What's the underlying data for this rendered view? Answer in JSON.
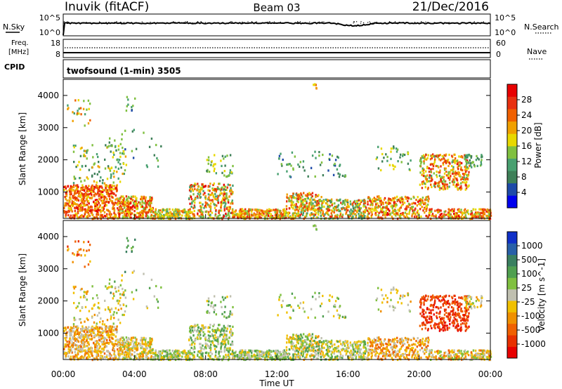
{
  "header": {
    "station": "Inuvik (fitACF)",
    "beam": "Beam 03",
    "date": "21/Dec/2016"
  },
  "noise_panel": {
    "left_label": "N.Sky",
    "right_label": "N.Search",
    "left_ticks": [
      "10^5",
      "10^0"
    ],
    "right_ticks": [
      "10^5",
      "10^0"
    ]
  },
  "freq_panel": {
    "label_line1": "Freq.",
    "label_line2": "[MHz]",
    "left_ticks": [
      "18",
      "8"
    ],
    "right_label": "Nave",
    "right_ticks": [
      "60",
      "0"
    ]
  },
  "cpid": {
    "label": "CPID",
    "program": "twofsound (1-min) 3505"
  },
  "axes": {
    "ylabel": "Slant Range [km]",
    "xlabel": "Time UT",
    "y_ticks": [
      "1000",
      "2000",
      "3000",
      "4000"
    ],
    "x_ticks": [
      "00:00",
      "04:00",
      "08:00",
      "12:00",
      "16:00",
      "20:00",
      "00:00"
    ]
  },
  "chart_data": [
    {
      "type": "heatmap",
      "name": "power",
      "colorbar_label": "Power [dB]",
      "colorbar_ticks": [
        "28",
        "24",
        "20",
        "16",
        "12",
        "8",
        "4"
      ],
      "colors": [
        "#0000ee",
        "#1e4aa8",
        "#3e8058",
        "#48a070",
        "#80c040",
        "#e8d800",
        "#f0a000",
        "#f06000",
        "#e83010",
        "#e80000"
      ],
      "x_range_hours": [
        0,
        24
      ],
      "y_range_km": [
        180,
        4500
      ]
    },
    {
      "type": "heatmap",
      "name": "velocity",
      "colorbar_label": "Velocity [m s^-1]",
      "colorbar_ticks": [
        "1000",
        "500",
        "100",
        "25",
        "-25",
        "-100",
        "-500",
        "-1000"
      ],
      "colors": [
        "#1030c8",
        "#2860a8",
        "#3a8060",
        "#50a050",
        "#80c040",
        "#c0c0b0",
        "#f0c000",
        "#f09000",
        "#f06000",
        "#e83000",
        "#e80000"
      ],
      "x_range_hours": [
        0,
        24
      ],
      "y_range_km": [
        180,
        4500
      ]
    }
  ]
}
